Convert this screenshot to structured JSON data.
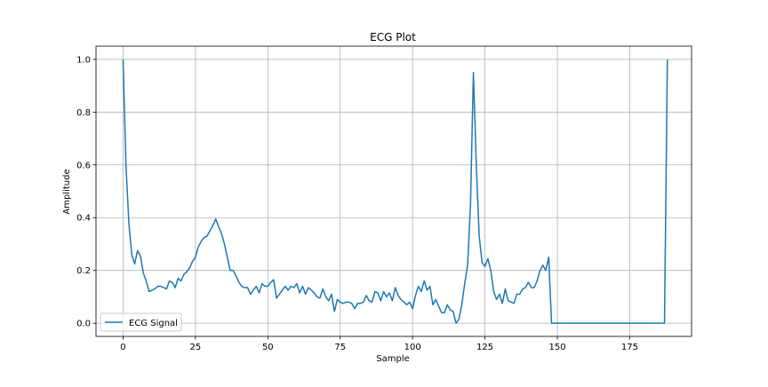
{
  "chart_data": {
    "type": "line",
    "title": "ECG Plot",
    "xlabel": "Sample",
    "ylabel": "Amplitude",
    "xlim": [
      -9.35,
      196.35
    ],
    "ylim": [
      -0.05,
      1.05
    ],
    "xticks": [
      0,
      25,
      50,
      75,
      100,
      125,
      150,
      175
    ],
    "xtick_labels": [
      "0",
      "25",
      "50",
      "75",
      "100",
      "125",
      "150",
      "175"
    ],
    "yticks": [
      0.0,
      0.2,
      0.4,
      0.6,
      0.8,
      1.0
    ],
    "ytick_labels": [
      "0.0",
      "0.2",
      "0.4",
      "0.6",
      "0.8",
      "1.0"
    ],
    "grid": true,
    "legend_position": "lower-left",
    "colors": {
      "series": "#1f77b4",
      "grid": "#b0b0b0",
      "axes": "#000000",
      "background": "#ffffff"
    },
    "series": [
      {
        "name": "ECG Signal",
        "values": [
          1.0,
          0.6,
          0.38,
          0.26,
          0.225,
          0.275,
          0.255,
          0.19,
          0.16,
          0.12,
          0.125,
          0.13,
          0.14,
          0.14,
          0.135,
          0.13,
          0.16,
          0.155,
          0.135,
          0.17,
          0.16,
          0.185,
          0.195,
          0.21,
          0.235,
          0.25,
          0.29,
          0.31,
          0.325,
          0.33,
          0.35,
          0.37,
          0.395,
          0.365,
          0.34,
          0.3,
          0.25,
          0.2,
          0.2,
          0.18,
          0.155,
          0.14,
          0.135,
          0.135,
          0.11,
          0.125,
          0.14,
          0.115,
          0.15,
          0.14,
          0.14,
          0.155,
          0.165,
          0.095,
          0.11,
          0.125,
          0.14,
          0.125,
          0.14,
          0.135,
          0.15,
          0.115,
          0.14,
          0.11,
          0.135,
          0.125,
          0.115,
          0.1,
          0.095,
          0.13,
          0.1,
          0.085,
          0.11,
          0.045,
          0.09,
          0.08,
          0.075,
          0.08,
          0.08,
          0.075,
          0.055,
          0.075,
          0.075,
          0.08,
          0.105,
          0.085,
          0.08,
          0.12,
          0.115,
          0.085,
          0.12,
          0.1,
          0.115,
          0.085,
          0.135,
          0.105,
          0.09,
          0.08,
          0.07,
          0.08,
          0.055,
          0.105,
          0.14,
          0.12,
          0.16,
          0.125,
          0.14,
          0.07,
          0.09,
          0.065,
          0.04,
          0.04,
          0.07,
          0.05,
          0.045,
          0.0,
          0.015,
          0.07,
          0.15,
          0.22,
          0.45,
          0.95,
          0.6,
          0.33,
          0.23,
          0.215,
          0.245,
          0.2,
          0.12,
          0.09,
          0.11,
          0.075,
          0.13,
          0.085,
          0.08,
          0.075,
          0.11,
          0.11,
          0.13,
          0.135,
          0.155,
          0.135,
          0.135,
          0.16,
          0.2,
          0.22,
          0.2,
          0.25,
          0.0,
          0.0,
          0.0,
          0.0,
          0.0,
          0.0,
          0.0,
          0.0,
          0.0,
          0.0,
          0.0,
          0.0,
          0.0,
          0.0,
          0.0,
          0.0,
          0.0,
          0.0,
          0.0,
          0.0,
          0.0,
          0.0,
          0.0,
          0.0,
          0.0,
          0.0,
          0.0,
          0.0,
          0.0,
          0.0,
          0.0,
          0.0,
          0.0,
          0.0,
          0.0,
          0.0,
          0.0,
          0.0,
          0.0,
          0.0,
          1.0
        ]
      }
    ]
  }
}
